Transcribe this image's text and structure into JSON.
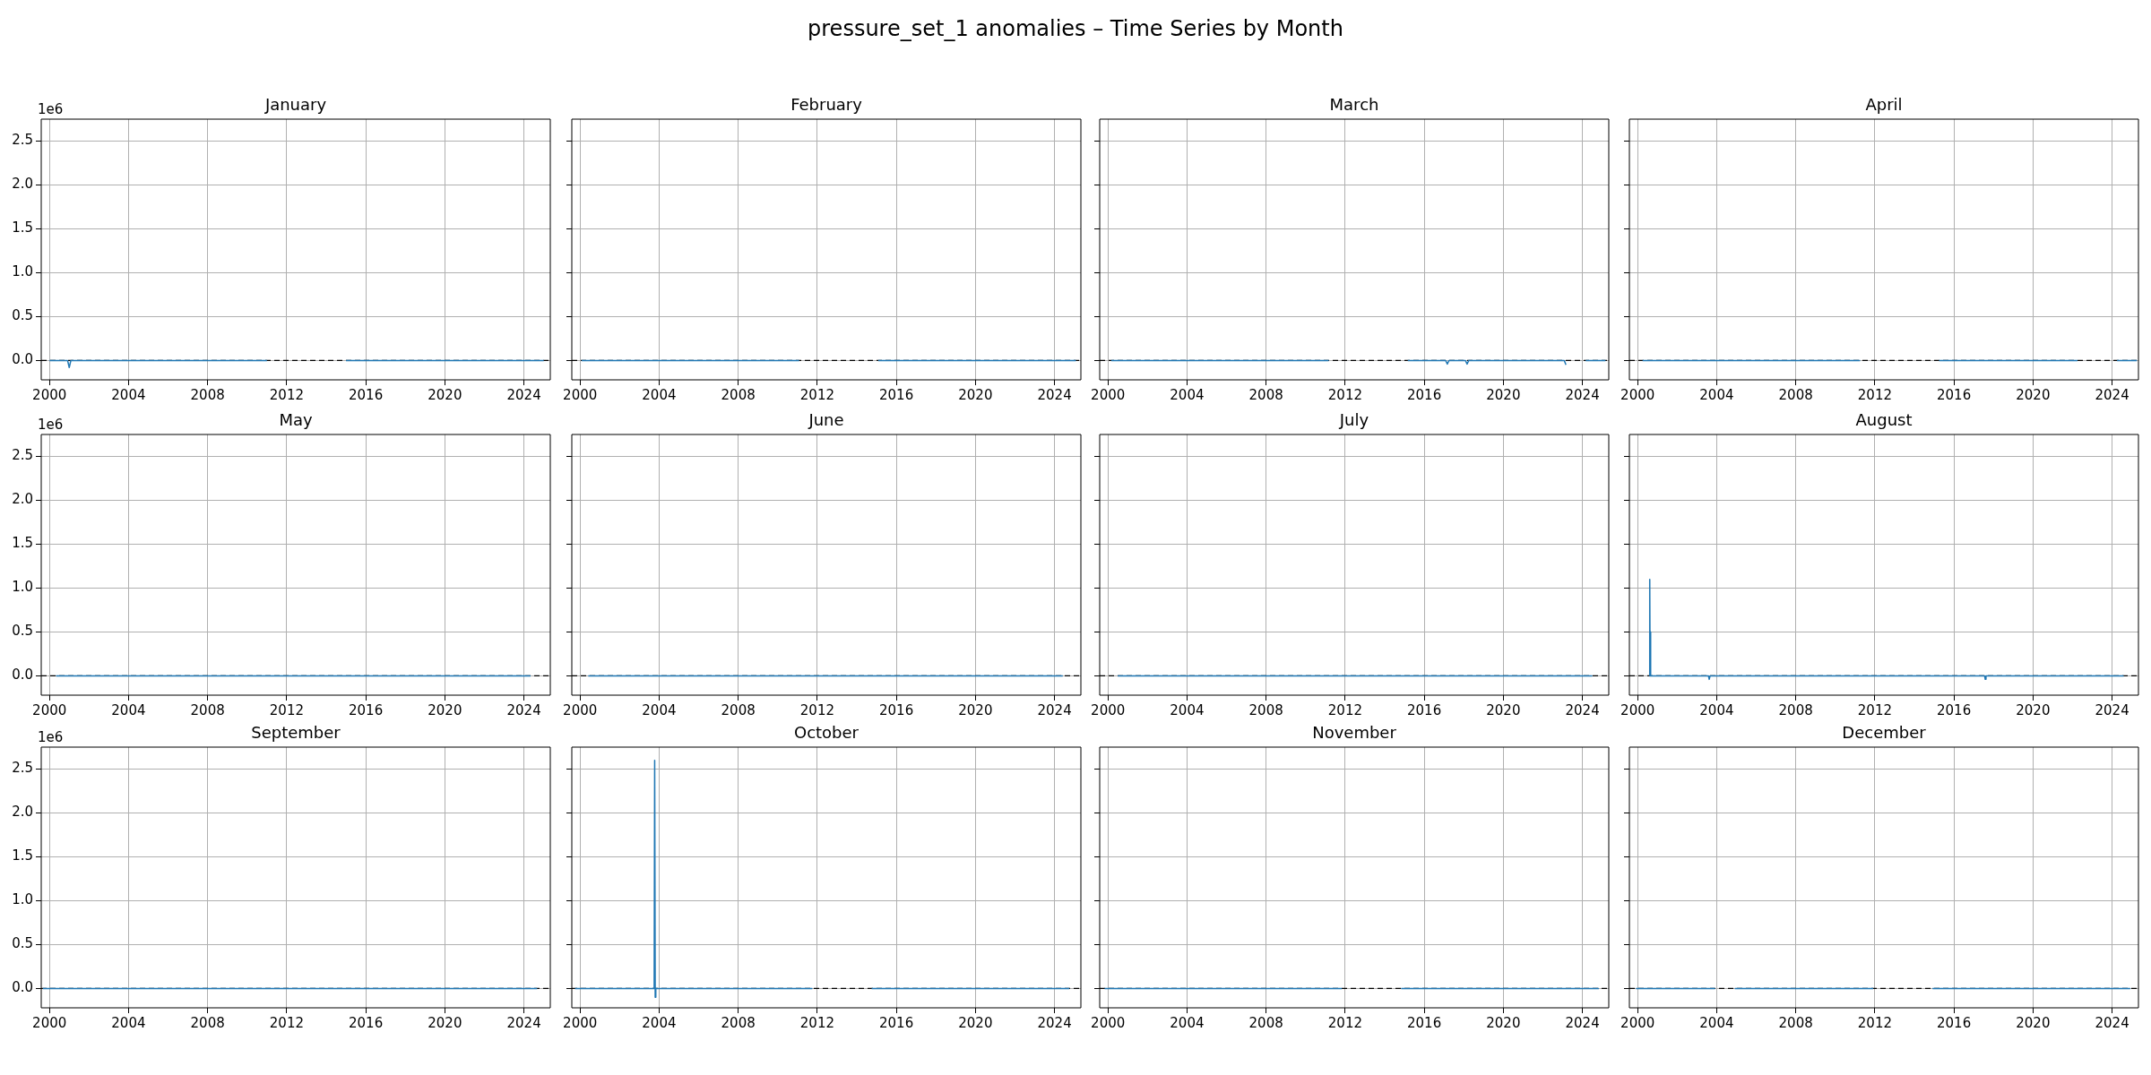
{
  "chart_data": [
    {
      "type": "other",
      "title": "pressure_set_1 anomalies – Time Series by Month"
    },
    {
      "type": "line",
      "title": "January",
      "annotations": [
        "1e6"
      ],
      "series": [
        {
          "color": "#1f77b4",
          "x": [
            "2000-01",
            "2000-12",
            "2001-01",
            "2001-02",
            "2011-01",
            "2011-02",
            "2015-01",
            "2025-01"
          ],
          "values": [
            0,
            0,
            -0.08,
            0,
            0,
            null,
            0,
            0
          ]
        }
      ],
      "xlim": [
        "1999-08",
        "2025-05"
      ],
      "xticks": [
        "2000",
        "2004",
        "2008",
        "2012",
        "2016",
        "2020",
        "2024"
      ],
      "ylim": [
        -0.22,
        2.75
      ],
      "yticks": [
        {
          "value": 0,
          "label": "0.0"
        },
        0.5,
        {
          "value": 1,
          "label": "1.0"
        },
        1.5,
        {
          "value": 2,
          "label": "2.0"
        },
        2.5
      ],
      "grid": true,
      "marker": "none",
      "line_style": "solid",
      "ref_lines": [
        {
          "axis": "y",
          "value": 0,
          "color": "#000000",
          "line_style": "dashed"
        }
      ]
    },
    {
      "type": "line",
      "title": "February",
      "tick_labels": "x",
      "series": [
        {
          "color": "#1f77b4",
          "x": [
            "2000-02",
            "2011-02",
            "2012-02",
            "2015-02",
            "2025-02"
          ],
          "values": [
            0,
            0,
            null,
            0,
            0
          ]
        }
      ],
      "xlim": [
        "1999-08",
        "2025-05"
      ],
      "xticks": [
        "2000",
        "2004",
        "2008",
        "2012",
        "2016",
        "2020",
        "2024"
      ],
      "ylim": [
        -0.22,
        2.75
      ],
      "yticks": [
        {
          "value": 0,
          "label": null
        },
        {
          "value": 0.5,
          "label": null
        },
        {
          "value": 1,
          "label": null
        },
        {
          "value": 1.5,
          "label": null
        },
        {
          "value": 2,
          "label": null
        },
        {
          "value": 2.5,
          "label": null
        }
      ],
      "grid": true,
      "marker": "none",
      "line_style": "solid",
      "ref_lines": [
        {
          "axis": "y",
          "value": 0,
          "color": "#000000",
          "line_style": "dashed"
        }
      ]
    },
    {
      "type": "line",
      "title": "March",
      "tick_labels": "x",
      "series": [
        {
          "color": "#1f77b4",
          "x": [
            "2000-03",
            "2011-03",
            "2012-03",
            "2015-03",
            "2017-02",
            "2017-03",
            "2017-04",
            "2018-02",
            "2018-03",
            "2018-04",
            "2023-02",
            "2023-03",
            "2023-09",
            "2024-03",
            "2025-03"
          ],
          "values": [
            0,
            0,
            null,
            0,
            0,
            -0.04,
            0,
            0,
            -0.04,
            0,
            0,
            -0.05,
            null,
            0,
            0
          ]
        }
      ],
      "xlim": [
        "1999-08",
        "2025-05"
      ],
      "xticks": [
        "2000",
        "2004",
        "2008",
        "2012",
        "2016",
        "2020",
        "2024"
      ],
      "ylim": [
        -0.22,
        2.75
      ],
      "yticks": [
        {
          "value": 0,
          "label": null
        },
        {
          "value": 0.5,
          "label": null
        },
        {
          "value": 1,
          "label": null
        },
        {
          "value": 1.5,
          "label": null
        },
        {
          "value": 2,
          "label": null
        },
        {
          "value": 2.5,
          "label": null
        }
      ],
      "grid": true,
      "marker": "none",
      "line_style": "solid",
      "ref_lines": [
        {
          "axis": "y",
          "value": 0,
          "color": "#000000",
          "line_style": "dashed"
        }
      ]
    },
    {
      "type": "line",
      "title": "April",
      "tick_labels": "x",
      "series": [
        {
          "color": "#1f77b4",
          "x": [
            "2000-04",
            "2011-04",
            "2012-04",
            "2015-04",
            "2022-04",
            "2023-04",
            "2024-04",
            "2025-04"
          ],
          "values": [
            0,
            0,
            null,
            0,
            0,
            null,
            0,
            0
          ]
        }
      ],
      "xlim": [
        "1999-08",
        "2025-05"
      ],
      "xticks": [
        "2000",
        "2004",
        "2008",
        "2012",
        "2016",
        "2020",
        "2024"
      ],
      "ylim": [
        -0.22,
        2.75
      ],
      "yticks": [
        {
          "value": 0,
          "label": null
        },
        {
          "value": 0.5,
          "label": null
        },
        {
          "value": 1,
          "label": null
        },
        {
          "value": 1.5,
          "label": null
        },
        {
          "value": 2,
          "label": null
        },
        {
          "value": 2.5,
          "label": null
        }
      ],
      "grid": true,
      "marker": "none",
      "line_style": "solid",
      "ref_lines": [
        {
          "axis": "y",
          "value": 0,
          "color": "#000000",
          "line_style": "dashed"
        }
      ]
    },
    {
      "type": "line",
      "title": "May",
      "annotations": [
        "1e6"
      ],
      "series": [
        {
          "color": "#1f77b4",
          "x": [
            "2000-05",
            "2024-05"
          ],
          "values": [
            0,
            0
          ]
        }
      ],
      "xlim": [
        "1999-08",
        "2025-05"
      ],
      "xticks": [
        "2000",
        "2004",
        "2008",
        "2012",
        "2016",
        "2020",
        "2024"
      ],
      "ylim": [
        -0.22,
        2.75
      ],
      "yticks": [
        {
          "value": 0,
          "label": "0.0"
        },
        0.5,
        {
          "value": 1,
          "label": "1.0"
        },
        1.5,
        {
          "value": 2,
          "label": "2.0"
        },
        2.5
      ],
      "grid": true,
      "marker": "none",
      "line_style": "solid",
      "ref_lines": [
        {
          "axis": "y",
          "value": 0,
          "color": "#000000",
          "line_style": "dashed"
        }
      ]
    },
    {
      "type": "line",
      "title": "June",
      "tick_labels": "x",
      "series": [
        {
          "color": "#1f77b4",
          "x": [
            "2000-06",
            "2024-06"
          ],
          "values": [
            0,
            0
          ]
        }
      ],
      "xlim": [
        "1999-08",
        "2025-05"
      ],
      "xticks": [
        "2000",
        "2004",
        "2008",
        "2012",
        "2016",
        "2020",
        "2024"
      ],
      "ylim": [
        -0.22,
        2.75
      ],
      "yticks": [
        {
          "value": 0,
          "label": null
        },
        {
          "value": 0.5,
          "label": null
        },
        {
          "value": 1,
          "label": null
        },
        {
          "value": 1.5,
          "label": null
        },
        {
          "value": 2,
          "label": null
        },
        {
          "value": 2.5,
          "label": null
        }
      ],
      "grid": true,
      "marker": "none",
      "line_style": "solid",
      "ref_lines": [
        {
          "axis": "y",
          "value": 0,
          "color": "#000000",
          "line_style": "dashed"
        }
      ]
    },
    {
      "type": "line",
      "title": "July",
      "tick_labels": "x",
      "series": [
        {
          "color": "#1f77b4",
          "x": [
            "2000-07",
            "2024-07"
          ],
          "values": [
            0,
            0
          ]
        }
      ],
      "xlim": [
        "1999-08",
        "2025-05"
      ],
      "xticks": [
        "2000",
        "2004",
        "2008",
        "2012",
        "2016",
        "2020",
        "2024"
      ],
      "ylim": [
        -0.22,
        2.75
      ],
      "yticks": [
        {
          "value": 0,
          "label": null
        },
        {
          "value": 0.5,
          "label": null
        },
        {
          "value": 1,
          "label": null
        },
        {
          "value": 1.5,
          "label": null
        },
        {
          "value": 2,
          "label": null
        },
        {
          "value": 2.5,
          "label": null
        }
      ],
      "grid": true,
      "marker": "none",
      "line_style": "solid",
      "ref_lines": [
        {
          "axis": "y",
          "value": 0,
          "color": "#000000",
          "line_style": "dashed"
        }
      ]
    },
    {
      "type": "line",
      "title": "August",
      "tick_labels": "x",
      "series": [
        {
          "color": "#1f77b4",
          "x": [
            "2000-08-05",
            "2000-08-12",
            "2000-08-19",
            "2000-08-26",
            "2000-08-31",
            "2003-08-01",
            "2003-08-15",
            "2003-08-31",
            "2017-07-20",
            "2017-08-01",
            "2017-08-15",
            "2024-08"
          ],
          "values": [
            0,
            1.1,
            0,
            0.5,
            0,
            0,
            -0.04,
            0,
            0,
            -0.04,
            0,
            0
          ]
        }
      ],
      "xlim": [
        "1999-08",
        "2025-05"
      ],
      "xticks": [
        "2000",
        "2004",
        "2008",
        "2012",
        "2016",
        "2020",
        "2024"
      ],
      "ylim": [
        -0.22,
        2.75
      ],
      "yticks": [
        {
          "value": 0,
          "label": null
        },
        {
          "value": 0.5,
          "label": null
        },
        {
          "value": 1,
          "label": null
        },
        {
          "value": 1.5,
          "label": null
        },
        {
          "value": 2,
          "label": null
        },
        {
          "value": 2.5,
          "label": null
        }
      ],
      "grid": true,
      "marker": "none",
      "line_style": "solid",
      "ref_lines": [
        {
          "axis": "y",
          "value": 0,
          "color": "#000000",
          "line_style": "dashed"
        }
      ]
    },
    {
      "type": "line",
      "title": "September",
      "annotations": [
        "1e6"
      ],
      "series": [
        {
          "color": "#1f77b4",
          "x": [
            "1999-09",
            "2024-09"
          ],
          "values": [
            0,
            0
          ]
        }
      ],
      "xlim": [
        "1999-08",
        "2025-05"
      ],
      "xticks": [
        "2000",
        "2004",
        "2008",
        "2012",
        "2016",
        "2020",
        "2024"
      ],
      "ylim": [
        -0.22,
        2.75
      ],
      "yticks": [
        {
          "value": 0,
          "label": "0.0"
        },
        0.5,
        {
          "value": 1,
          "label": "1.0"
        },
        1.5,
        {
          "value": 2,
          "label": "2.0"
        },
        2.5
      ],
      "grid": true,
      "marker": "none",
      "line_style": "solid",
      "ref_lines": [
        {
          "axis": "y",
          "value": 0,
          "color": "#000000",
          "line_style": "dashed"
        }
      ]
    },
    {
      "type": "line",
      "title": "October",
      "tick_labels": "x",
      "series": [
        {
          "color": "#1f77b4",
          "x": [
            "1999-10",
            "2003-10-01",
            "2003-10-10",
            "2003-10-20",
            "2003-10-31",
            "2011-10",
            "2012-10",
            "2014-10",
            "2024-10"
          ],
          "values": [
            0,
            0,
            2.6,
            -0.1,
            0,
            0,
            null,
            0,
            0
          ]
        }
      ],
      "xlim": [
        "1999-08",
        "2025-05"
      ],
      "xticks": [
        "2000",
        "2004",
        "2008",
        "2012",
        "2016",
        "2020",
        "2024"
      ],
      "ylim": [
        -0.22,
        2.75
      ],
      "yticks": [
        {
          "value": 0,
          "label": null
        },
        {
          "value": 0.5,
          "label": null
        },
        {
          "value": 1,
          "label": null
        },
        {
          "value": 1.5,
          "label": null
        },
        {
          "value": 2,
          "label": null
        },
        {
          "value": 2.5,
          "label": null
        }
      ],
      "grid": true,
      "marker": "none",
      "line_style": "solid",
      "ref_lines": [
        {
          "axis": "y",
          "value": 0,
          "color": "#000000",
          "line_style": "dashed"
        }
      ]
    },
    {
      "type": "line",
      "title": "November",
      "tick_labels": "x",
      "series": [
        {
          "color": "#1f77b4",
          "x": [
            "1999-11",
            "2011-11",
            "2012-11",
            "2014-11",
            "2024-11"
          ],
          "values": [
            0,
            0,
            null,
            0,
            0
          ]
        }
      ],
      "xlim": [
        "1999-08",
        "2025-05"
      ],
      "xticks": [
        "2000",
        "2004",
        "2008",
        "2012",
        "2016",
        "2020",
        "2024"
      ],
      "ylim": [
        -0.22,
        2.75
      ],
      "yticks": [
        {
          "value": 0,
          "label": null
        },
        {
          "value": 0.5,
          "label": null
        },
        {
          "value": 1,
          "label": null
        },
        {
          "value": 1.5,
          "label": null
        },
        {
          "value": 2,
          "label": null
        },
        {
          "value": 2.5,
          "label": null
        }
      ],
      "grid": true,
      "marker": "none",
      "line_style": "solid",
      "ref_lines": [
        {
          "axis": "y",
          "value": 0,
          "color": "#000000",
          "line_style": "dashed"
        }
      ]
    },
    {
      "type": "line",
      "title": "December",
      "tick_labels": "x",
      "series": [
        {
          "color": "#1f77b4",
          "x": [
            "1999-12",
            "2003-12",
            "2004-06",
            "2004-12",
            "2011-12",
            "2012-12",
            "2014-12",
            "2024-12"
          ],
          "values": [
            0,
            0,
            null,
            0,
            0,
            null,
            0,
            0
          ]
        }
      ],
      "xlim": [
        "1999-08",
        "2025-05"
      ],
      "xticks": [
        "2000",
        "2004",
        "2008",
        "2012",
        "2016",
        "2020",
        "2024"
      ],
      "ylim": [
        -0.22,
        2.75
      ],
      "yticks": [
        {
          "value": 0,
          "label": null
        },
        {
          "value": 0.5,
          "label": null
        },
        {
          "value": 1,
          "label": null
        },
        {
          "value": 1.5,
          "label": null
        },
        {
          "value": 2,
          "label": null
        },
        {
          "value": 2.5,
          "label": null
        }
      ],
      "grid": true,
      "marker": "none",
      "line_style": "solid",
      "ref_lines": [
        {
          "axis": "y",
          "value": 0,
          "color": "#000000",
          "line_style": "dashed"
        }
      ]
    }
  ]
}
